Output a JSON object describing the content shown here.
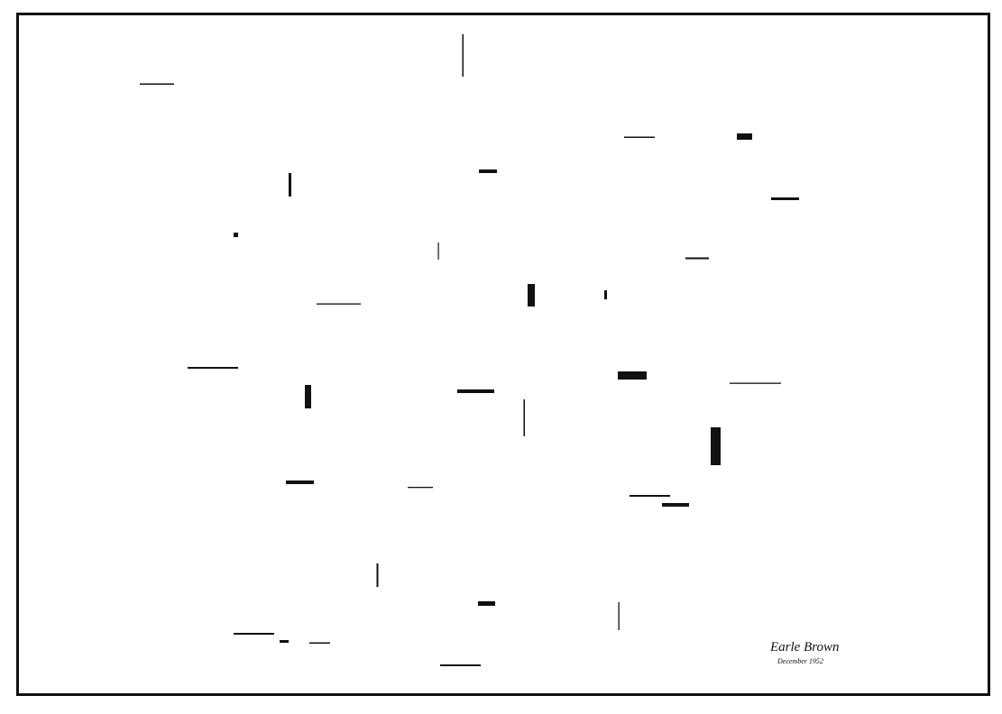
{
  "signature": "Earle Brown",
  "date": "December 1952"
}
